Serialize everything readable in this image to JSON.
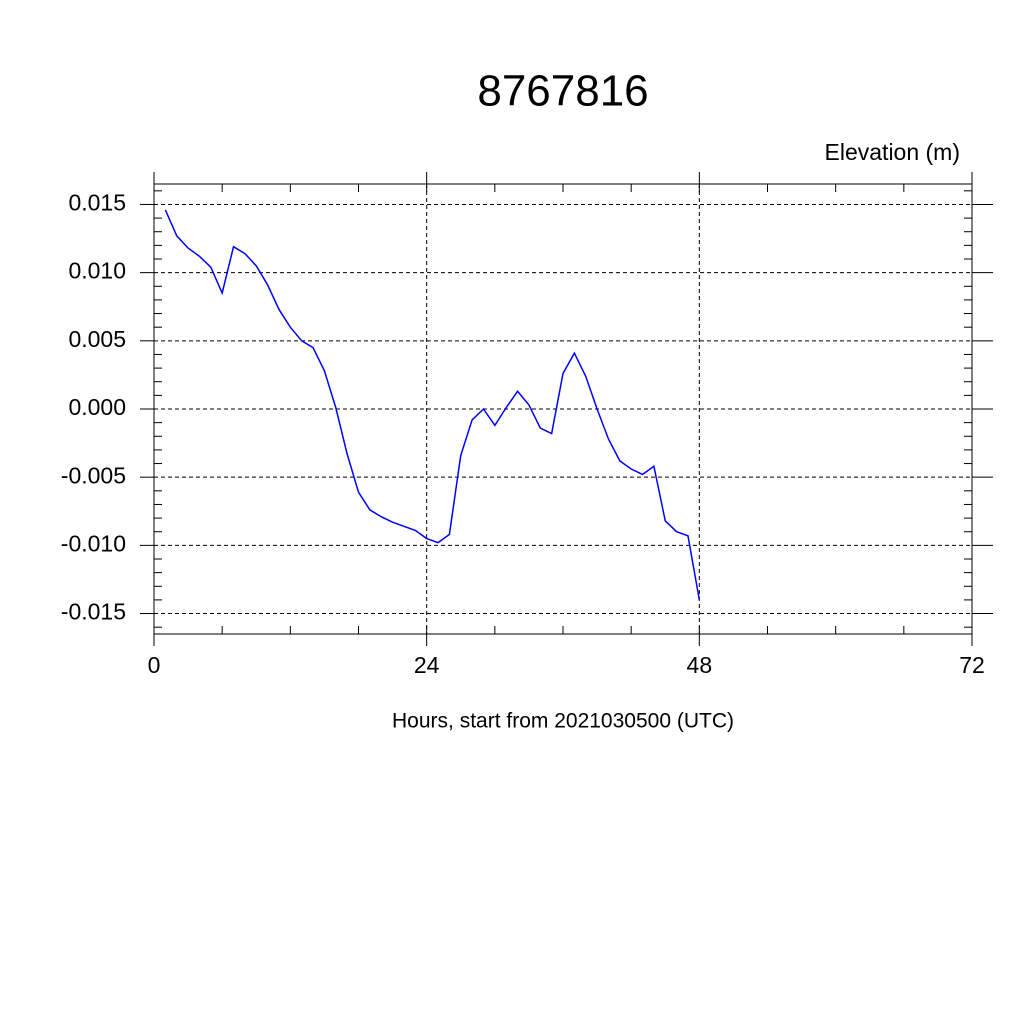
{
  "chart_data": {
    "type": "line",
    "title": "8767816",
    "subtitle": "Elevation (m)",
    "x_label": "Hours, start from 2021030500 (UTC)",
    "x": [
      1,
      2,
      3,
      4,
      5,
      6,
      7,
      8,
      9,
      10,
      11,
      12,
      13,
      14,
      15,
      16,
      17,
      18,
      19,
      20,
      21,
      22,
      23,
      24,
      25,
      26,
      27,
      28,
      29,
      30,
      31,
      32,
      33,
      34,
      35,
      36,
      37,
      38,
      39,
      40,
      41,
      42,
      43,
      44,
      45,
      46,
      47,
      48
    ],
    "series": [
      {
        "color": "#0000ff",
        "values": [
          0.0146,
          0.0127,
          0.0118,
          0.0112,
          0.0104,
          0.0085,
          0.0119,
          0.0114,
          0.0105,
          0.0091,
          0.0073,
          0.006,
          0.005,
          0.0045,
          0.0028,
          0.0001,
          -0.0033,
          -0.0061,
          -0.0074,
          -0.0079,
          -0.0083,
          -0.0086,
          -0.0089,
          -0.0095,
          -0.0098,
          -0.0092,
          -0.0034,
          -0.0008,
          0.0,
          -0.0012,
          0.0001,
          0.0013,
          0.0003,
          -0.0014,
          -0.0018,
          0.0026,
          0.0041,
          0.0024,
          0.0,
          -0.0022,
          -0.0038,
          -0.0044,
          -0.0048,
          -0.0042,
          -0.0082,
          -0.009,
          -0.0093,
          -0.014
        ]
      }
    ],
    "xlim": [
      0,
      72
    ],
    "xticks": [
      0,
      24,
      48,
      72
    ],
    "ylim": [
      -0.0165,
      0.0165
    ],
    "yticks": [
      {
        "value": -0.015,
        "label": "-0.015"
      },
      {
        "value": -0.01,
        "label": "-0.010"
      },
      {
        "value": -0.005,
        "label": "-0.005"
      },
      {
        "value": 0,
        "label": "0.000"
      },
      {
        "value": 0.005,
        "label": "0.005"
      },
      {
        "value": 0.01,
        "label": "0.010"
      },
      {
        "value": 0.015,
        "label": "0.015"
      }
    ],
    "grid": true
  }
}
